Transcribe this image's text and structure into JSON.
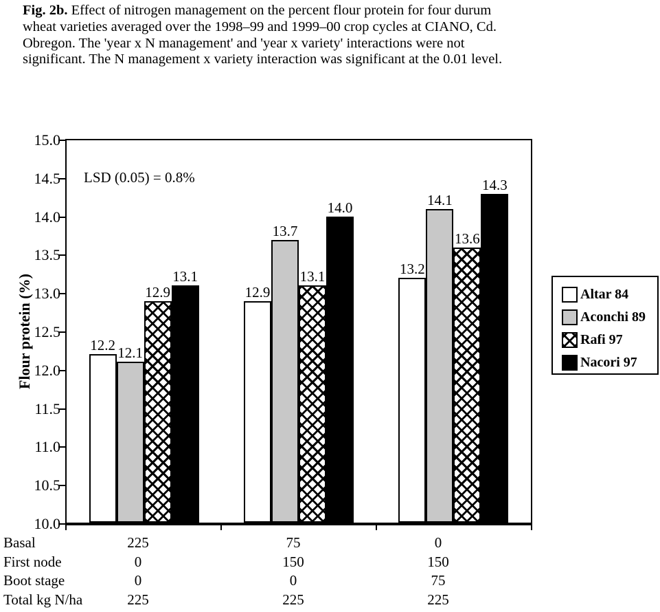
{
  "caption": {
    "fig_label": "Fig. 2b.",
    "line1_rest": "  Effect of nitrogen management on the percent flour protein for four durum",
    "line2": "wheat varieties averaged over the 1998–99 and 1999–00 crop cycles at CIANO, Cd.",
    "line3": "Obregon.  The 'year x N management' and 'year x variety' interactions were not",
    "line4": "significant.  The N management x variety interaction was significant at the  0.01 level."
  },
  "chart_data": {
    "type": "bar",
    "title": "",
    "xlabel": "",
    "ylabel": "Flour protein (%)",
    "ylim": [
      10.0,
      15.0
    ],
    "ytick_step": 0.5,
    "grid": false,
    "legend_position": "right",
    "annotation": "LSD (0.05) = 0.8%",
    "groups": 3,
    "series": [
      {
        "name": "Altar 84",
        "pattern": "white",
        "color": "#ffffff",
        "values": [
          12.2,
          12.9,
          13.2
        ]
      },
      {
        "name": "Aconchi 89",
        "pattern": "gray",
        "color": "#c8c8c8",
        "values": [
          12.1,
          13.7,
          14.1
        ]
      },
      {
        "name": "Rafi 97",
        "pattern": "crosshatch",
        "color": "#000000",
        "values": [
          12.9,
          13.1,
          13.6
        ]
      },
      {
        "name": "Nacori 97",
        "pattern": "black",
        "color": "#000000",
        "values": [
          13.1,
          14.0,
          14.3
        ]
      }
    ],
    "x_table": {
      "rows": [
        {
          "label": "Basal",
          "values": [
            "225",
            "75",
            "0"
          ]
        },
        {
          "label": "First node",
          "values": [
            "0",
            "150",
            "150"
          ]
        },
        {
          "label": "Boot stage",
          "values": [
            "0",
            "0",
            "75"
          ]
        },
        {
          "label": "Total kg N/ha",
          "values": [
            "225",
            "225",
            "225"
          ]
        }
      ]
    }
  }
}
